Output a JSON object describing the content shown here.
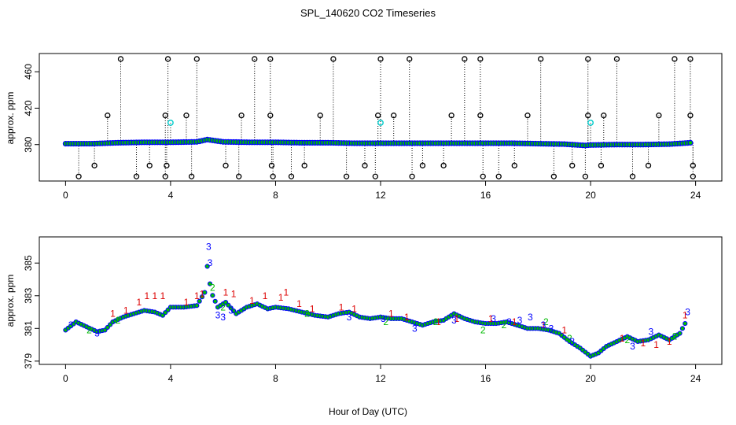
{
  "title": "SPL_140620  CO2 Timeseries",
  "chart_data": [
    {
      "type": "scatter",
      "ylabel": "approx. ppm",
      "xlabel": "",
      "xlim": [
        -1,
        25
      ],
      "ylim": [
        340,
        480
      ],
      "x_ticks": [
        0,
        4,
        8,
        12,
        16,
        20,
        24
      ],
      "y_ticks": [
        380,
        420,
        460
      ],
      "colors": {
        "main": "#0000ff",
        "fill": "#00c000",
        "outlier": "#000000",
        "flag": "#00cccc"
      },
      "baseline": [
        [
          0,
          381
        ],
        [
          1,
          381
        ],
        [
          2,
          382
        ],
        [
          3,
          382.5
        ],
        [
          4,
          382.5
        ],
        [
          5,
          383
        ],
        [
          5.4,
          385.5
        ],
        [
          6,
          383
        ],
        [
          7,
          382.5
        ],
        [
          8,
          382.5
        ],
        [
          9,
          382
        ],
        [
          10,
          382
        ],
        [
          11,
          381.5
        ],
        [
          12,
          381.5
        ],
        [
          13,
          381.5
        ],
        [
          14,
          381.5
        ],
        [
          15,
          381.5
        ],
        [
          16,
          381.5
        ],
        [
          17,
          381.5
        ],
        [
          18,
          381
        ],
        [
          19,
          380.5
        ],
        [
          19.8,
          379
        ],
        [
          20,
          379.5
        ],
        [
          21,
          380
        ],
        [
          22,
          380
        ],
        [
          23,
          380.5
        ],
        [
          23.8,
          382
        ]
      ],
      "outliers_high": [
        [
          2.1,
          474
        ],
        [
          3.9,
          474
        ],
        [
          5.0,
          474
        ],
        [
          7.2,
          474
        ],
        [
          7.8,
          474
        ],
        [
          10.2,
          474
        ],
        [
          12.0,
          474
        ],
        [
          13.1,
          474
        ],
        [
          15.2,
          474
        ],
        [
          15.8,
          474
        ],
        [
          18.1,
          474
        ],
        [
          19.9,
          474
        ],
        [
          21.0,
          474
        ],
        [
          23.2,
          474
        ],
        [
          23.8,
          474
        ]
      ],
      "outliers_mid": [
        [
          1.6,
          412
        ],
        [
          3.8,
          412
        ],
        [
          4.6,
          412
        ],
        [
          6.7,
          412
        ],
        [
          7.8,
          412
        ],
        [
          9.7,
          412
        ],
        [
          11.9,
          412
        ],
        [
          12.5,
          412
        ],
        [
          14.7,
          412
        ],
        [
          15.8,
          412
        ],
        [
          17.6,
          412
        ],
        [
          19.9,
          412
        ],
        [
          20.5,
          412
        ],
        [
          22.6,
          412
        ],
        [
          23.8,
          412
        ]
      ],
      "outliers_low": [
        [
          0.5,
          345
        ],
        [
          1.1,
          357
        ],
        [
          2.7,
          345
        ],
        [
          3.2,
          357
        ],
        [
          3.8,
          345
        ],
        [
          3.85,
          357
        ],
        [
          4.8,
          345
        ],
        [
          6.1,
          357
        ],
        [
          6.6,
          345
        ],
        [
          7.9,
          345
        ],
        [
          7.85,
          357
        ],
        [
          8.6,
          345
        ],
        [
          9.1,
          357
        ],
        [
          10.7,
          345
        ],
        [
          11.4,
          357
        ],
        [
          11.8,
          345
        ],
        [
          13.2,
          345
        ],
        [
          13.6,
          357
        ],
        [
          14.4,
          357
        ],
        [
          15.9,
          345
        ],
        [
          16.5,
          345
        ],
        [
          17.1,
          357
        ],
        [
          18.6,
          345
        ],
        [
          19.3,
          357
        ],
        [
          19.8,
          345
        ],
        [
          20.4,
          357
        ],
        [
          21.6,
          345
        ],
        [
          22.2,
          357
        ],
        [
          23.9,
          345
        ],
        [
          23.9,
          357
        ]
      ],
      "flags": [
        [
          4.0,
          404
        ],
        [
          12.0,
          404
        ],
        [
          20.0,
          404
        ]
      ]
    },
    {
      "type": "scatter",
      "ylabel": "approx. ppm",
      "xlabel": "Hour of Day (UTC)",
      "xlim": [
        -1,
        25
      ],
      "ylim": [
        378.8,
        386.6
      ],
      "x_ticks": [
        0,
        4,
        8,
        12,
        16,
        20,
        24
      ],
      "y_ticks": [
        379,
        381,
        383,
        385
      ],
      "series": [
        {
          "label": "1",
          "color": "#dd0000"
        },
        {
          "label": "2",
          "color": "#00bb00"
        },
        {
          "label": "3",
          "color": "#0000ff"
        }
      ],
      "circle_color": "#0000ff",
      "circle_fill": "#00c000",
      "base": [
        [
          0,
          380.9
        ],
        [
          0.4,
          381.4
        ],
        [
          0.8,
          381.1
        ],
        [
          1.2,
          380.8
        ],
        [
          1.5,
          380.9
        ],
        [
          1.8,
          381.4
        ],
        [
          2.2,
          381.7
        ],
        [
          2.6,
          381.9
        ],
        [
          3.0,
          382.1
        ],
        [
          3.4,
          382.0
        ],
        [
          3.7,
          381.8
        ],
        [
          4.0,
          382.3
        ],
        [
          4.5,
          382.3
        ],
        [
          5.0,
          382.4
        ],
        [
          5.3,
          383.2
        ],
        [
          5.4,
          384.8
        ],
        [
          5.55,
          383.2
        ],
        [
          5.8,
          382.3
        ],
        [
          6.1,
          382.6
        ],
        [
          6.5,
          381.9
        ],
        [
          6.9,
          382.3
        ],
        [
          7.3,
          382.5
        ],
        [
          7.7,
          382.2
        ],
        [
          8.0,
          382.3
        ],
        [
          8.5,
          382.2
        ],
        [
          9.0,
          382.0
        ],
        [
          9.5,
          381.8
        ],
        [
          10.0,
          381.7
        ],
        [
          10.4,
          381.9
        ],
        [
          10.8,
          382.0
        ],
        [
          11.2,
          381.7
        ],
        [
          11.6,
          381.6
        ],
        [
          12.0,
          381.7
        ],
        [
          12.4,
          381.6
        ],
        [
          12.8,
          381.6
        ],
        [
          13.2,
          381.4
        ],
        [
          13.6,
          381.2
        ],
        [
          14.0,
          381.4
        ],
        [
          14.4,
          381.5
        ],
        [
          14.8,
          381.9
        ],
        [
          15.2,
          381.6
        ],
        [
          15.6,
          381.4
        ],
        [
          16.0,
          381.3
        ],
        [
          16.4,
          381.3
        ],
        [
          16.8,
          381.4
        ],
        [
          17.2,
          381.2
        ],
        [
          17.6,
          381.0
        ],
        [
          18.0,
          381.0
        ],
        [
          18.4,
          380.9
        ],
        [
          18.8,
          380.7
        ],
        [
          19.2,
          380.2
        ],
        [
          19.6,
          379.8
        ],
        [
          20.0,
          379.3
        ],
        [
          20.3,
          379.5
        ],
        [
          20.6,
          379.9
        ],
        [
          21.0,
          380.2
        ],
        [
          21.4,
          380.5
        ],
        [
          21.8,
          380.2
        ],
        [
          22.2,
          380.3
        ],
        [
          22.6,
          380.6
        ],
        [
          23.0,
          380.3
        ],
        [
          23.4,
          380.7
        ],
        [
          23.7,
          381.6
        ]
      ],
      "labels_1": [
        [
          1.8,
          381.9
        ],
        [
          2.3,
          382.1
        ],
        [
          2.8,
          382.6
        ],
        [
          3.1,
          383.0
        ],
        [
          3.4,
          383.0
        ],
        [
          3.7,
          383.0
        ],
        [
          4.6,
          382.6
        ],
        [
          5.0,
          383.0
        ],
        [
          5.2,
          383.1
        ],
        [
          6.1,
          383.2
        ],
        [
          6.4,
          383.1
        ],
        [
          7.1,
          382.7
        ],
        [
          7.6,
          383.0
        ],
        [
          8.2,
          382.9
        ],
        [
          8.4,
          383.2
        ],
        [
          8.9,
          382.5
        ],
        [
          9.4,
          382.2
        ],
        [
          10.5,
          382.3
        ],
        [
          11.0,
          382.2
        ],
        [
          12.4,
          381.9
        ],
        [
          13.0,
          381.7
        ],
        [
          14.2,
          381.4
        ],
        [
          14.9,
          381.6
        ],
        [
          16.2,
          381.6
        ],
        [
          17.1,
          381.4
        ],
        [
          18.2,
          381.2
        ],
        [
          19.0,
          380.9
        ],
        [
          21.2,
          380.4
        ],
        [
          22.0,
          380.1
        ],
        [
          22.5,
          380.0
        ],
        [
          23.0,
          380.2
        ],
        [
          23.6,
          381.8
        ]
      ],
      "labels_2": [
        [
          0.9,
          380.9
        ],
        [
          2.0,
          381.5
        ],
        [
          5.6,
          383.5
        ],
        [
          6.0,
          382.3
        ],
        [
          9.2,
          381.9
        ],
        [
          12.2,
          381.4
        ],
        [
          14.1,
          381.4
        ],
        [
          15.9,
          380.9
        ],
        [
          16.7,
          381.2
        ],
        [
          18.3,
          381.4
        ],
        [
          19.2,
          380.4
        ],
        [
          21.4,
          380.3
        ],
        [
          23.2,
          380.5
        ]
      ],
      "labels_3": [
        [
          0.2,
          381.2
        ],
        [
          1.2,
          380.7
        ],
        [
          5.45,
          386.0
        ],
        [
          5.5,
          385.0
        ],
        [
          5.8,
          381.8
        ],
        [
          6.0,
          381.7
        ],
        [
          6.3,
          382.1
        ],
        [
          10.8,
          381.7
        ],
        [
          12.1,
          381.6
        ],
        [
          13.3,
          381.0
        ],
        [
          14.8,
          381.5
        ],
        [
          16.3,
          381.6
        ],
        [
          16.9,
          381.4
        ],
        [
          17.3,
          381.5
        ],
        [
          17.7,
          381.7
        ],
        [
          18.2,
          381.2
        ],
        [
          18.5,
          381.0
        ],
        [
          19.3,
          380.2
        ],
        [
          21.6,
          379.9
        ],
        [
          22.3,
          380.8
        ],
        [
          23.7,
          382.0
        ]
      ]
    }
  ]
}
